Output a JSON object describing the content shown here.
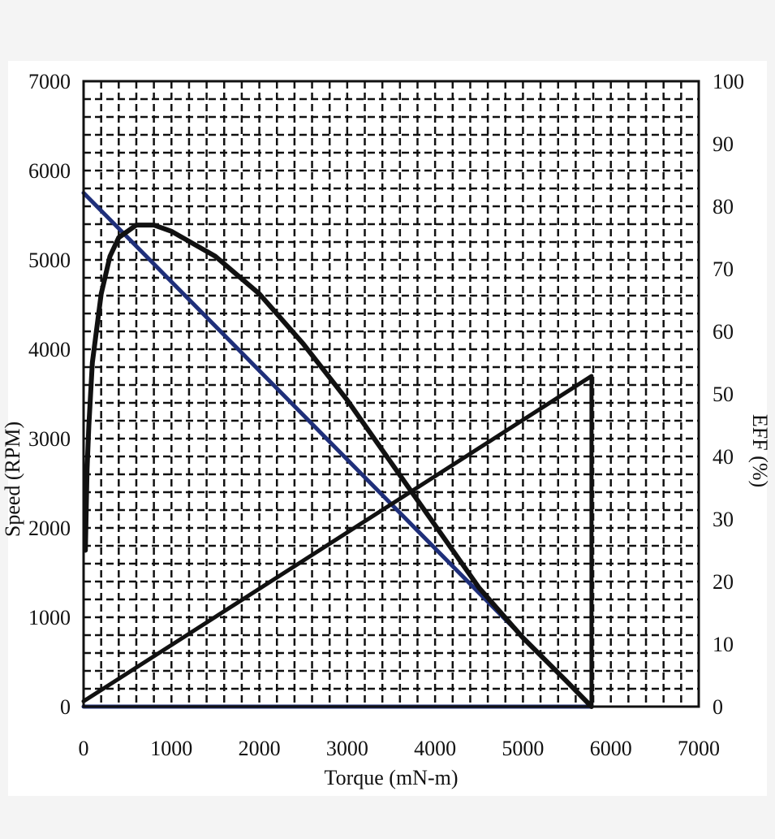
{
  "chart_data": {
    "type": "line",
    "title": "",
    "xlabel": "Torque (mN-m)",
    "ylabel": "Speed (RPM)",
    "y2label": "EFF (%)",
    "xlim": [
      0,
      7000
    ],
    "ylim": [
      0,
      7000
    ],
    "y2lim": [
      0,
      100
    ],
    "xticks": [
      "0",
      "1000",
      "2000",
      "3000",
      "4000",
      "5000",
      "6000",
      "7000"
    ],
    "yticks": [
      "0",
      "1000",
      "2000",
      "3000",
      "4000",
      "5000",
      "6000",
      "7000"
    ],
    "y2ticks": [
      "0",
      "10",
      "20",
      "30",
      "40",
      "50",
      "60",
      "70",
      "80",
      "90",
      "100"
    ],
    "grid": true,
    "grid_style": "dashed",
    "series": [
      {
        "axis": "left",
        "color": "#1f2f7a",
        "x": [
          0,
          5780
        ],
        "y": [
          5750,
          0
        ]
      },
      {
        "axis": "left",
        "color": "#1f2f7a",
        "x": [
          0,
          5780
        ],
        "y": [
          0,
          0
        ]
      },
      {
        "axis": "left",
        "color": "#111111",
        "x": [
          0,
          5780,
          5780
        ],
        "y": [
          60,
          3700,
          0
        ]
      },
      {
        "axis": "right",
        "color": "#111111",
        "x": [
          20,
          40,
          60,
          100,
          200,
          300,
          400,
          600,
          800,
          1000,
          1500,
          2000,
          2500,
          3000,
          3500,
          4000,
          4500,
          5000,
          5500,
          5780
        ],
        "y": [
          25,
          38,
          45,
          55,
          66,
          72,
          75,
          77,
          77,
          76,
          72,
          66,
          58,
          49,
          39,
          29,
          19,
          11,
          4,
          0
        ]
      }
    ]
  }
}
